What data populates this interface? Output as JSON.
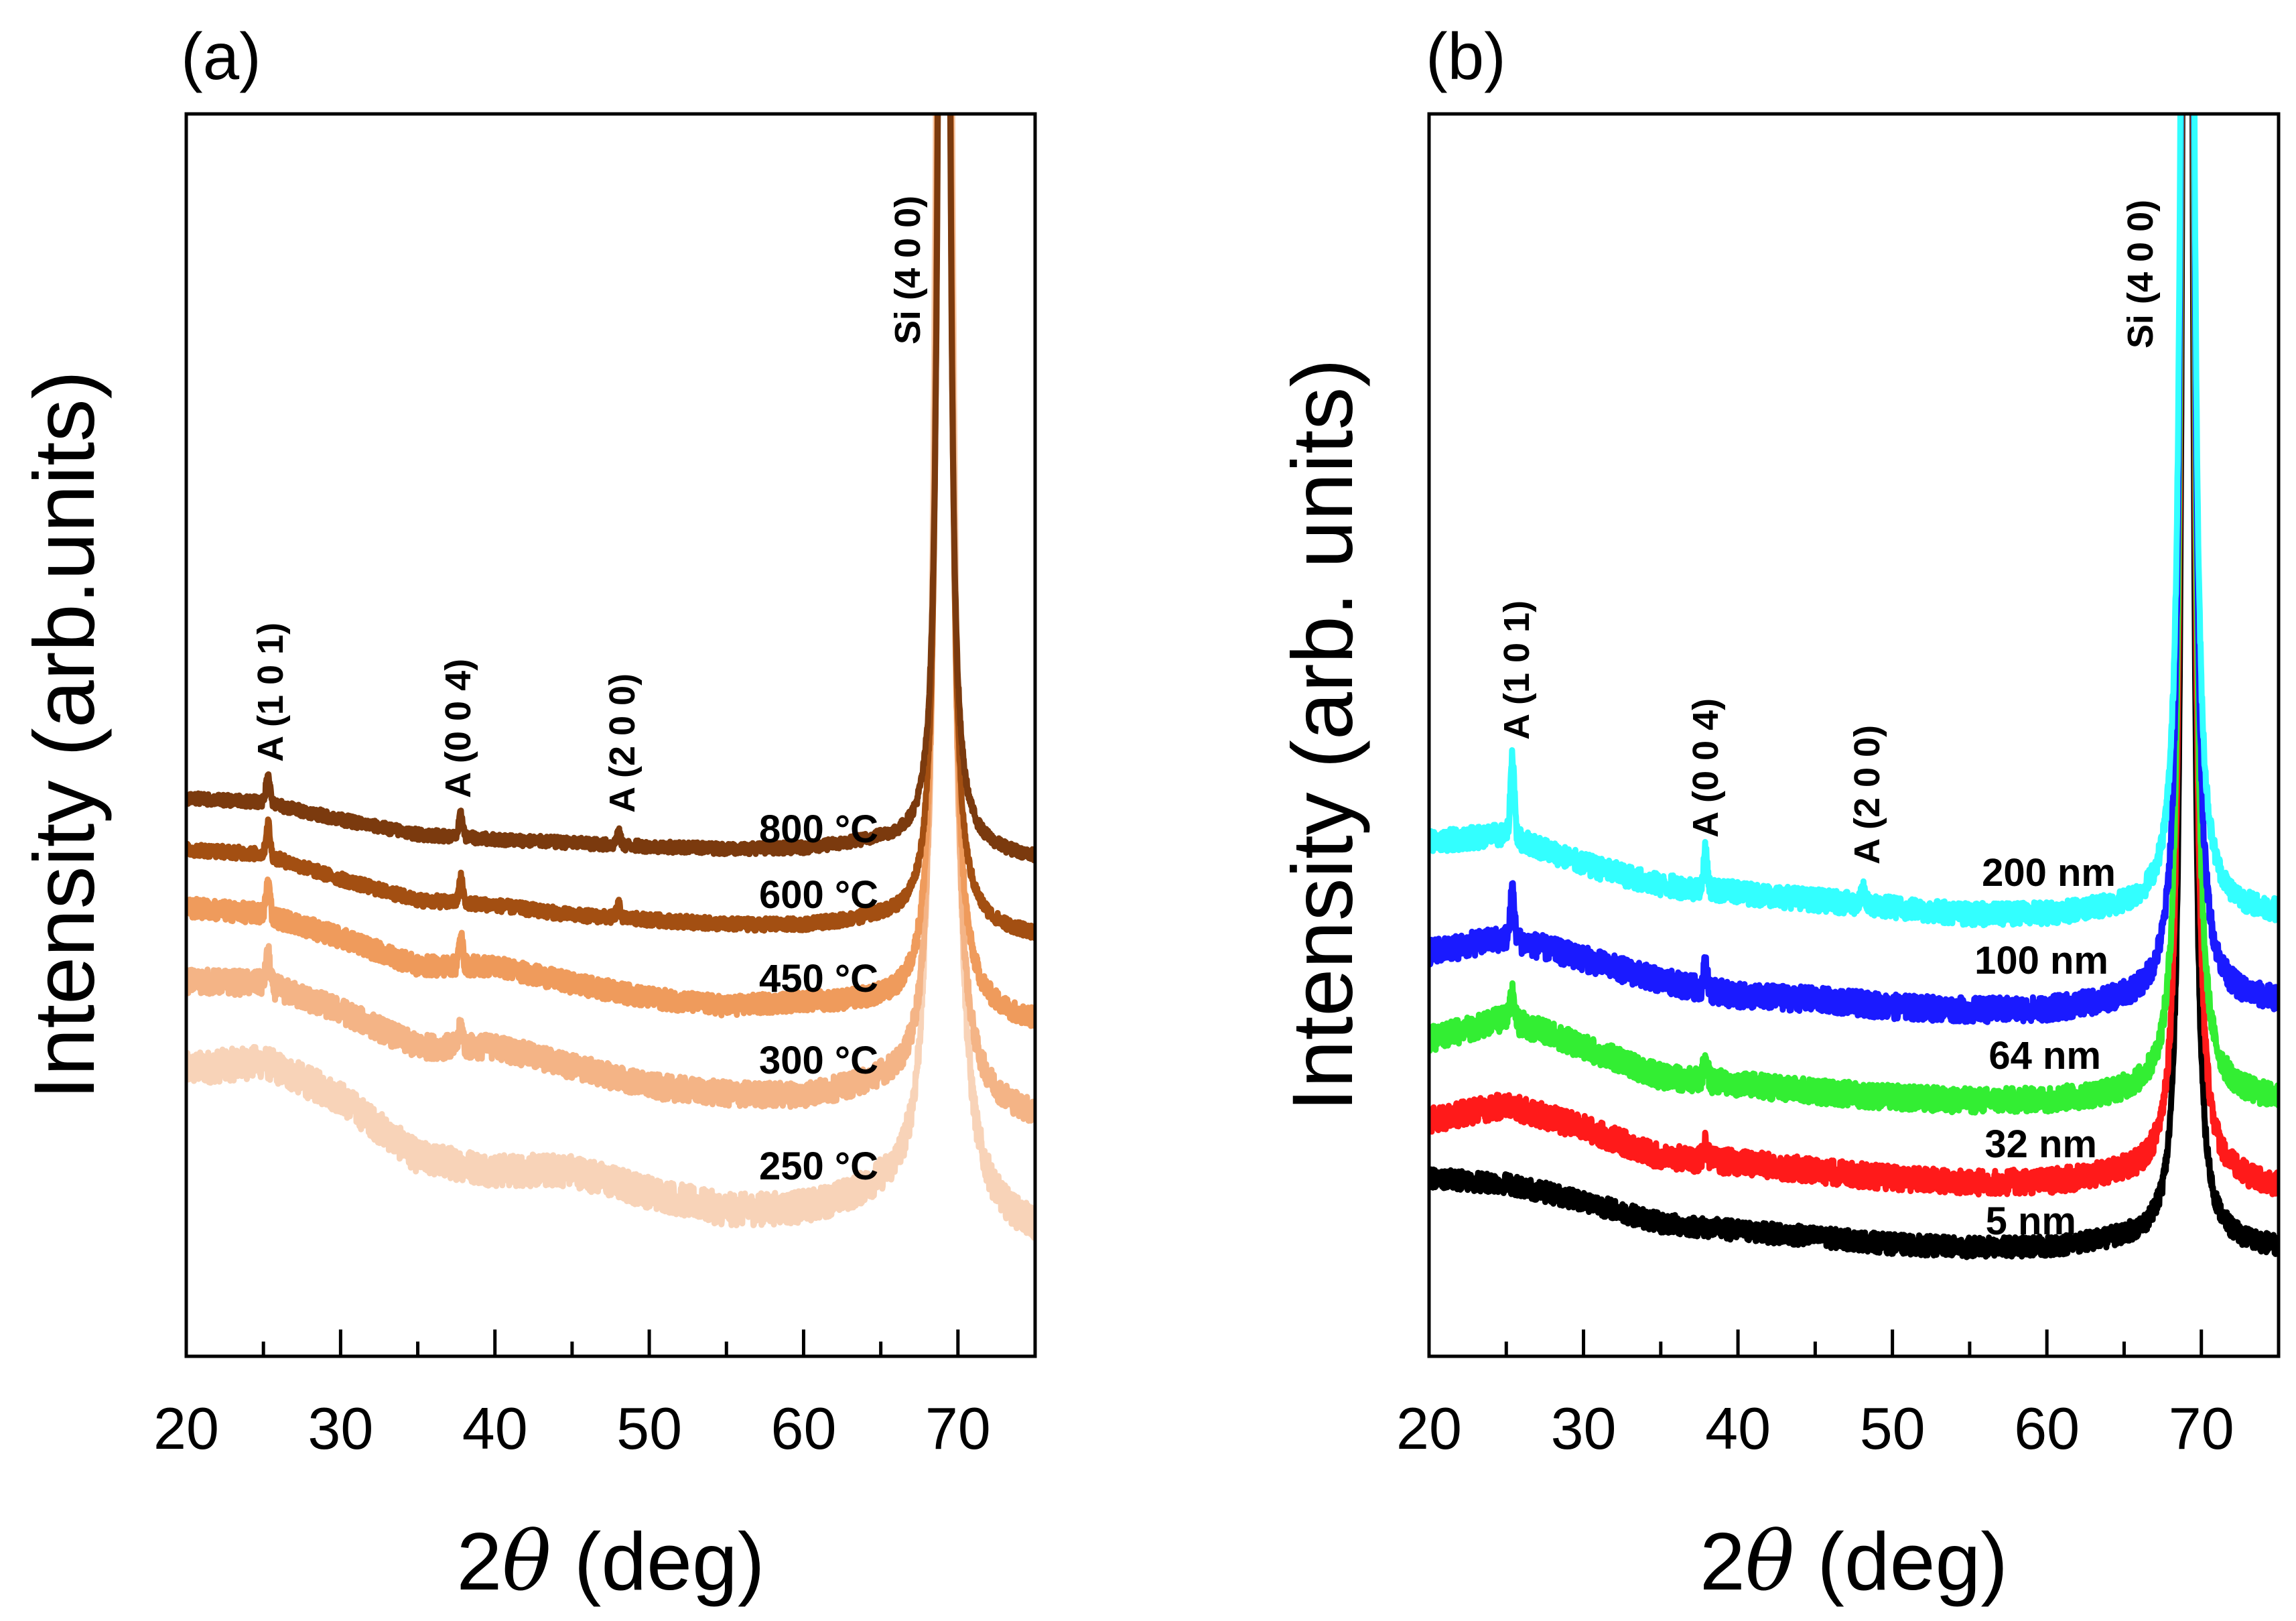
{
  "chart_data": [
    {
      "panel": "(a)",
      "type": "line",
      "xlabel_prefix": "2",
      "xlabel_symbol": "θ",
      "xlabel_suffix": " (deg)",
      "ylabel": "Intensity (arb.units)",
      "xlim": [
        20,
        75
      ],
      "ylim": [
        0,
        100
      ],
      "xticks": [
        20,
        30,
        40,
        50,
        60,
        70
      ],
      "xtick_labels": [
        "20",
        "30",
        "40",
        "50",
        "60",
        "70"
      ],
      "annotations": [
        {
          "text": "A (1 0 1)",
          "x": 25.3
        },
        {
          "text": "A (0 0 4)",
          "x": 37.8
        },
        {
          "text": "A (2 0 0)",
          "x": 48.0
        },
        {
          "text": "Si (4 0 0)",
          "x": 69.1
        }
      ],
      "series": [
        {
          "name": "800 °C",
          "color": "#7b3a0e",
          "x": [
            20,
            25,
            30,
            35,
            40,
            45,
            50,
            55,
            60,
            65,
            75
          ],
          "y": [
            44.9,
            44.6,
            43.2,
            42.0,
            41.6,
            41.3,
            41.0,
            40.8,
            40.8,
            41.3,
            40.0
          ],
          "peaks": [
            [
              25.3,
              2.4
            ],
            [
              37.8,
              1.8
            ],
            [
              48.0,
              1.0
            ]
          ],
          "si_amp": 300,
          "si_width": 0.2,
          "noise": 0.45
        },
        {
          "name": "600 °C",
          "color": "#a34f12",
          "x": [
            20,
            25,
            30,
            35,
            40,
            45,
            50,
            55,
            60,
            65,
            75
          ],
          "y": [
            40.8,
            40.4,
            38.4,
            36.7,
            36.3,
            35.5,
            35.1,
            34.7,
            34.6,
            35.0,
            33.7
          ],
          "peaks": [
            [
              25.3,
              2.6
            ],
            [
              37.8,
              2.0
            ],
            [
              48.0,
              1.0
            ]
          ],
          "si_amp": 300,
          "si_width": 0.22,
          "noise": 0.5
        },
        {
          "name": "450 °C",
          "color": "#ef9b5c",
          "x": [
            20,
            25,
            30,
            35,
            40,
            45,
            50,
            55,
            60,
            65,
            75
          ],
          "y": [
            36.1,
            35.6,
            33.7,
            31.4,
            31.4,
            30.0,
            28.8,
            28.1,
            28.4,
            28.2,
            26.7
          ],
          "peaks": [
            [
              25.3,
              2.6
            ],
            [
              37.8,
              2.2
            ]
          ],
          "si_amp": 300,
          "si_width": 0.25,
          "noise": 0.8
        },
        {
          "name": "300 °C",
          "color": "#f4b486",
          "x": [
            20,
            25,
            30,
            35,
            40,
            45,
            50,
            55,
            60,
            65,
            75
          ],
          "y": [
            30.2,
            30.0,
            27.8,
            24.9,
            24.9,
            23.3,
            21.7,
            21.0,
            20.8,
            21.5,
            19.0
          ],
          "peaks": [
            [
              25.3,
              2.4
            ],
            [
              37.8,
              1.6
            ]
          ],
          "si_amp": 300,
          "si_width": 0.28,
          "noise": 1.0
        },
        {
          "name": "250 °C",
          "color": "#f8d3b8",
          "x": [
            20,
            25,
            30,
            35,
            40,
            45,
            50,
            55,
            60,
            65,
            75
          ],
          "y": [
            23.1,
            23.7,
            20.8,
            16.0,
            14.9,
            14.9,
            13.1,
            11.6,
            11.6,
            12.5,
            9.6
          ],
          "peaks": [],
          "si_amp": 300,
          "si_width": 0.35,
          "noise": 1.3
        }
      ]
    },
    {
      "panel": "(b)",
      "type": "line",
      "xlabel_prefix": "2",
      "xlabel_symbol": "θ",
      "xlabel_suffix": " (deg)",
      "ylabel": "Intensity (arb. units)",
      "xlim": [
        20,
        75
      ],
      "ylim": [
        0,
        100
      ],
      "xticks": [
        20,
        30,
        40,
        50,
        60,
        70
      ],
      "xtick_labels": [
        "20",
        "30",
        "40",
        "50",
        "60",
        "70"
      ],
      "annotations": [
        {
          "text": "A (1 0 1)",
          "x": 25.4
        },
        {
          "text": "A (0 0 4)",
          "x": 37.9
        },
        {
          "text": "A (2 0 0)",
          "x": 48.1
        },
        {
          "text": "Si (4 0 0)",
          "x": 69.1
        }
      ],
      "series": [
        {
          "name": "200 nm",
          "color": "#33ffff",
          "x": [
            20,
            25,
            30,
            35,
            40,
            45,
            50,
            55,
            60,
            65,
            75
          ],
          "y": [
            41.4,
            42.0,
            39.6,
            37.9,
            37.3,
            36.7,
            36.1,
            35.5,
            35.5,
            35.8,
            35.5
          ],
          "peaks": [
            [
              25.4,
              6.5
            ],
            [
              37.9,
              3.0
            ],
            [
              48.1,
              1.0
            ]
          ],
          "si_amp": 400,
          "si_width": 0.2,
          "noise": 0.9
        },
        {
          "name": "100 nm",
          "color": "#1a1aff",
          "x": [
            20,
            25,
            30,
            35,
            40,
            45,
            50,
            55,
            60,
            65,
            75
          ],
          "y": [
            32.5,
            33.7,
            32.0,
            30.2,
            29.0,
            28.7,
            28.1,
            27.8,
            27.8,
            28.3,
            28.4
          ],
          "peaks": [
            [
              25.4,
              4.0
            ],
            [
              37.9,
              2.0
            ]
          ],
          "si_amp": 400,
          "si_width": 0.2,
          "noise": 1.0
        },
        {
          "name": "64 nm",
          "color": "#33ee33",
          "x": [
            20,
            25,
            30,
            35,
            40,
            45,
            50,
            55,
            60,
            65,
            75
          ],
          "y": [
            25.5,
            27.2,
            24.9,
            22.5,
            21.9,
            21.3,
            20.8,
            20.5,
            20.5,
            20.8,
            20.5
          ],
          "peaks": [
            [
              25.4,
              2.4
            ],
            [
              37.9,
              2.0
            ]
          ],
          "si_amp": 400,
          "si_width": 0.2,
          "noise": 1.0
        },
        {
          "name": "32 nm",
          "color": "#ff1a1a",
          "x": [
            20,
            25,
            30,
            35,
            40,
            45,
            50,
            55,
            60,
            65,
            75
          ],
          "y": [
            19.0,
            20.2,
            18.4,
            16.0,
            15.6,
            14.9,
            14.3,
            13.9,
            13.9,
            14.3,
            13.4
          ],
          "peaks": [
            [
              37.9,
              1.5
            ]
          ],
          "si_amp": 400,
          "si_width": 0.2,
          "noise": 1.0
        },
        {
          "name": "5 nm",
          "color": "#000000",
          "x": [
            20,
            25,
            30,
            35,
            40,
            45,
            50,
            55,
            60,
            65,
            75
          ],
          "y": [
            14.3,
            13.9,
            12.5,
            10.7,
            10.1,
            9.6,
            9.0,
            8.7,
            8.7,
            9.2,
            8.6
          ],
          "peaks": [],
          "si_amp": 400,
          "si_width": 0.18,
          "noise": 0.8
        }
      ]
    }
  ]
}
